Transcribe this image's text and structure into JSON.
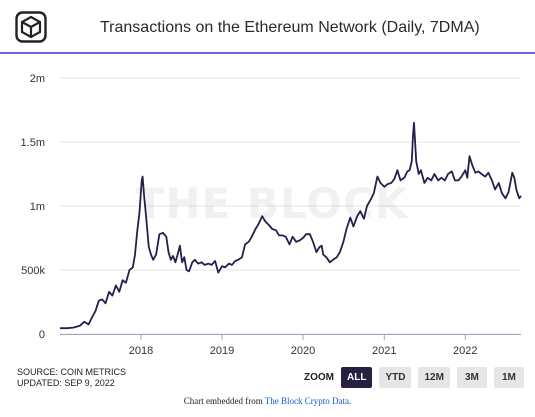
{
  "header": {
    "title": "Transactions on the Ethereum Network (Daily, 7DMA)"
  },
  "chart_data": {
    "type": "line",
    "title": "Transactions on the Ethereum Network (Daily, 7DMA)",
    "xlabel": "",
    "ylabel": "",
    "x_range": [
      "2017-01-01",
      "2022-09-09"
    ],
    "ylim": [
      0,
      2000000
    ],
    "y_ticks": [
      0,
      500000,
      1000000,
      1500000,
      2000000
    ],
    "y_tick_labels": [
      "0",
      "500k",
      "1m",
      "1.5m",
      "2m"
    ],
    "x_tick_labels": [
      "2018",
      "2019",
      "2020",
      "2021",
      "2022"
    ],
    "x_tick_dates": [
      "2018-01-01",
      "2019-01-01",
      "2020-01-01",
      "2021-01-01",
      "2022-01-01"
    ],
    "grid": "horizontal",
    "legend": "none",
    "line_color": "#261f4d",
    "series": [
      {
        "x": [
          "2017-01-01",
          "2017-02-01",
          "2017-03-01",
          "2017-04-01",
          "2017-04-20",
          "2017-05-10",
          "2017-05-25",
          "2017-06-10",
          "2017-06-25",
          "2017-07-10",
          "2017-07-25",
          "2017-08-10",
          "2017-08-25",
          "2017-09-10",
          "2017-09-25",
          "2017-10-10",
          "2017-10-25",
          "2017-11-10",
          "2017-11-25",
          "2017-12-05",
          "2017-12-15",
          "2017-12-25",
          "2018-01-04",
          "2018-01-08",
          "2018-01-15",
          "2018-01-25",
          "2018-02-05",
          "2018-02-15",
          "2018-02-25",
          "2018-03-10",
          "2018-03-25",
          "2018-04-10",
          "2018-04-25",
          "2018-05-05",
          "2018-05-15",
          "2018-05-25",
          "2018-06-05",
          "2018-06-15",
          "2018-06-25",
          "2018-07-05",
          "2018-07-15",
          "2018-07-25",
          "2018-08-05",
          "2018-08-20",
          "2018-09-01",
          "2018-09-15",
          "2018-10-01",
          "2018-10-15",
          "2018-11-01",
          "2018-11-15",
          "2018-12-01",
          "2018-12-15",
          "2019-01-01",
          "2019-01-15",
          "2019-02-01",
          "2019-02-15",
          "2019-03-01",
          "2019-03-15",
          "2019-04-01",
          "2019-04-15",
          "2019-05-01",
          "2019-05-15",
          "2019-06-01",
          "2019-06-15",
          "2019-07-01",
          "2019-07-15",
          "2019-08-01",
          "2019-08-15",
          "2019-09-01",
          "2019-09-15",
          "2019-10-01",
          "2019-10-15",
          "2019-11-01",
          "2019-11-15",
          "2019-12-01",
          "2019-12-15",
          "2020-01-01",
          "2020-01-15",
          "2020-02-01",
          "2020-02-15",
          "2020-03-01",
          "2020-03-15",
          "2020-03-25",
          "2020-04-01",
          "2020-04-15",
          "2020-05-01",
          "2020-05-15",
          "2020-06-01",
          "2020-06-15",
          "2020-07-01",
          "2020-07-15",
          "2020-08-01",
          "2020-08-15",
          "2020-09-01",
          "2020-09-15",
          "2020-10-01",
          "2020-10-15",
          "2020-11-01",
          "2020-11-15",
          "2020-12-01",
          "2020-12-15",
          "2021-01-01",
          "2021-01-15",
          "2021-02-01",
          "2021-02-15",
          "2021-03-01",
          "2021-03-15",
          "2021-04-01",
          "2021-04-15",
          "2021-04-25",
          "2021-05-05",
          "2021-05-10",
          "2021-05-15",
          "2021-05-25",
          "2021-06-05",
          "2021-06-15",
          "2021-07-01",
          "2021-07-15",
          "2021-08-01",
          "2021-08-15",
          "2021-09-01",
          "2021-09-15",
          "2021-10-01",
          "2021-10-15",
          "2021-11-01",
          "2021-11-15",
          "2021-12-01",
          "2021-12-15",
          "2022-01-01",
          "2022-01-10",
          "2022-01-20",
          "2022-02-01",
          "2022-02-15",
          "2022-03-01",
          "2022-03-15",
          "2022-04-01",
          "2022-04-15",
          "2022-05-01",
          "2022-05-15",
          "2022-06-01",
          "2022-06-15",
          "2022-07-01",
          "2022-07-15",
          "2022-08-01",
          "2022-08-10",
          "2022-08-20",
          "2022-09-01",
          "2022-09-09"
        ],
        "values": [
          45000,
          45000,
          50000,
          65000,
          95000,
          75000,
          130000,
          180000,
          260000,
          270000,
          240000,
          330000,
          300000,
          380000,
          330000,
          420000,
          400000,
          500000,
          520000,
          620000,
          800000,
          950000,
          1200000,
          1230000,
          1080000,
          900000,
          680000,
          620000,
          580000,
          620000,
          780000,
          790000,
          760000,
          640000,
          580000,
          610000,
          560000,
          620000,
          690000,
          560000,
          600000,
          500000,
          490000,
          560000,
          580000,
          550000,
          560000,
          540000,
          550000,
          540000,
          570000,
          480000,
          530000,
          520000,
          550000,
          540000,
          570000,
          580000,
          600000,
          700000,
          720000,
          760000,
          820000,
          860000,
          920000,
          880000,
          850000,
          820000,
          810000,
          770000,
          770000,
          760000,
          700000,
          760000,
          720000,
          730000,
          750000,
          780000,
          780000,
          720000,
          640000,
          680000,
          690000,
          620000,
          600000,
          560000,
          580000,
          600000,
          640000,
          720000,
          820000,
          910000,
          840000,
          920000,
          960000,
          900000,
          1000000,
          1050000,
          1100000,
          1230000,
          1180000,
          1150000,
          1170000,
          1180000,
          1210000,
          1280000,
          1200000,
          1220000,
          1270000,
          1280000,
          1350000,
          1540000,
          1650000,
          1350000,
          1250000,
          1280000,
          1180000,
          1220000,
          1200000,
          1250000,
          1200000,
          1220000,
          1200000,
          1250000,
          1270000,
          1200000,
          1200000,
          1230000,
          1280000,
          1220000,
          1390000,
          1320000,
          1260000,
          1270000,
          1250000,
          1230000,
          1260000,
          1200000,
          1130000,
          1180000,
          1100000,
          1060000,
          1110000,
          1260000,
          1220000,
          1120000,
          1060000,
          1080000
        ]
      }
    ]
  },
  "watermark": "THE BLOCK",
  "footer": {
    "source": "SOURCE: COIN METRICS",
    "updated": "UPDATED: SEP 9, 2022",
    "zoom_label": "ZOOM",
    "zoom_buttons": [
      "ALL",
      "YTD",
      "12M",
      "3M",
      "1M"
    ],
    "embed_prefix": "Chart embedded from ",
    "embed_link": "The Block Crypto Data",
    "embed_suffix": "."
  }
}
